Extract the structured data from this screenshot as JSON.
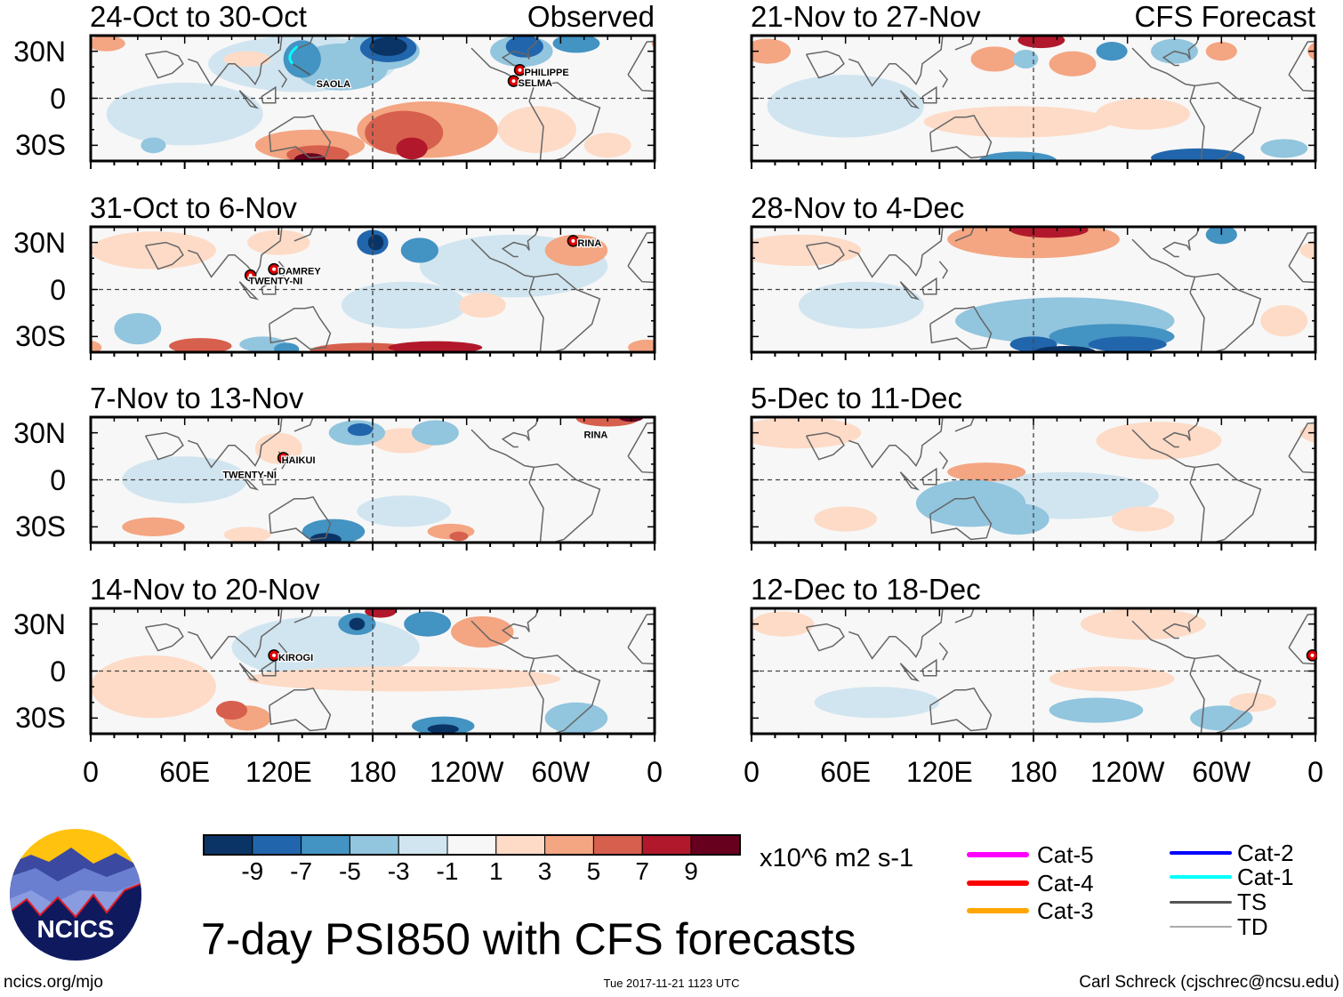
{
  "figure_title": "7-day PSI850 with CFS forecasts",
  "units": "x10^6 m2 s-1",
  "footer": {
    "left": "ncics.org/mjo",
    "center": "Tue 2017-11-21 1123 UTC",
    "right": "Carl Schreck (cjschrec@ncsu.edu)"
  },
  "logo_text": "NCICS",
  "column_labels": {
    "left": "Observed",
    "right": "CFS Forecast"
  },
  "colors": {
    "levels": [
      "#0b3466",
      "#2166ac",
      "#4393c3",
      "#92c5de",
      "#d1e5f0",
      "#f7f7f7",
      "#fddbc7",
      "#f4a582",
      "#d6604d",
      "#b2182b",
      "#67001f"
    ],
    "coast": "#666666"
  },
  "chart_data": {
    "type": "heatmap",
    "title": "7-day PSI850 with CFS forecasts",
    "colorbar": {
      "ticks": [
        "-9",
        "-7",
        "-5",
        "-3",
        "-1",
        "1",
        "3",
        "5",
        "7",
        "9"
      ],
      "label": "x10^6 m2 s-1"
    },
    "x_ticks": [
      "0",
      "60E",
      "120E",
      "180",
      "120W",
      "60W",
      "0"
    ],
    "y_ticks": [
      "30N",
      "0",
      "30S"
    ],
    "lon_range": [
      0,
      360
    ],
    "lat_range": [
      -40,
      40
    ],
    "panels": [
      {
        "title": "24-Oct to 30-Oct",
        "source": "Observed",
        "storms": [
          {
            "name": "SAOLA",
            "lon": 129,
            "lat": 27,
            "cat": "Cat-1",
            "marker": false
          },
          {
            "name": "PHILIPPE",
            "lon": 274,
            "lat": 18,
            "marker": true
          },
          {
            "name": "SELMA",
            "lon": 270,
            "lat": 11,
            "marker": true
          }
        ]
      },
      {
        "title": "31-Oct to 6-Nov",
        "source": "Observed",
        "storms": [
          {
            "name": "DAMREY",
            "lon": 117,
            "lat": 13,
            "marker": true
          },
          {
            "name": "TWENTY-NI",
            "lon": 102,
            "lat": 9,
            "marker": true
          },
          {
            "name": "RINA",
            "lon": 308,
            "lat": 31,
            "marker": true
          }
        ]
      },
      {
        "title": "7-Nov to 13-Nov",
        "source": "Observed",
        "storms": [
          {
            "name": "RINA",
            "lon": 312,
            "lat": 30,
            "marker": false
          },
          {
            "name": "HAIKUI",
            "lon": 123,
            "lat": 14,
            "marker": true
          },
          {
            "name": "TWENTY-NI",
            "lon": 103,
            "lat": 8,
            "marker": false
          }
        ]
      },
      {
        "title": "14-Nov to 20-Nov",
        "source": "Observed",
        "storms": [
          {
            "name": "KIROGI",
            "lon": 117,
            "lat": 10,
            "marker": true
          }
        ]
      },
      {
        "title": "21-Nov to 27-Nov",
        "source": "CFS Forecast",
        "storms": []
      },
      {
        "title": "28-Nov to 4-Dec",
        "source": "CFS Forecast",
        "storms": []
      },
      {
        "title": "5-Dec to 11-Dec",
        "source": "CFS Forecast",
        "storms": []
      },
      {
        "title": "12-Dec to 18-Dec",
        "source": "CFS Forecast",
        "storms": [
          {
            "name": "",
            "lon": 358,
            "lat": 10,
            "marker": true
          }
        ]
      }
    ]
  },
  "storm_legend": [
    {
      "label": "Cat-5",
      "color": "#ff00ff"
    },
    {
      "label": "Cat-4",
      "color": "#ff0000"
    },
    {
      "label": "Cat-3",
      "color": "#ffa500"
    },
    {
      "label": "Cat-2",
      "color": "#0000ff"
    },
    {
      "label": "Cat-1",
      "color": "#00ffff"
    },
    {
      "label": "TS",
      "color": "#555555"
    },
    {
      "label": "TD",
      "color": "#aaaaaa"
    }
  ]
}
